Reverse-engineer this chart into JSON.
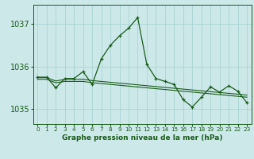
{
  "hours": [
    0,
    1,
    2,
    3,
    4,
    5,
    6,
    7,
    8,
    9,
    10,
    11,
    12,
    13,
    14,
    15,
    16,
    17,
    18,
    19,
    20,
    21,
    22,
    23
  ],
  "pressure_main": [
    1035.75,
    1035.75,
    1035.5,
    1035.72,
    1035.72,
    1035.88,
    1035.58,
    1036.18,
    1036.5,
    1036.72,
    1036.9,
    1037.15,
    1036.05,
    1035.72,
    1035.65,
    1035.58,
    1035.22,
    1035.05,
    1035.28,
    1035.52,
    1035.4,
    1035.55,
    1035.42,
    1035.15
  ],
  "pressure_flat1": [
    1035.7,
    1035.7,
    1035.62,
    1035.65,
    1035.65,
    1035.65,
    1035.62,
    1035.6,
    1035.58,
    1035.56,
    1035.54,
    1035.52,
    1035.5,
    1035.48,
    1035.46,
    1035.44,
    1035.42,
    1035.4,
    1035.38,
    1035.36,
    1035.34,
    1035.32,
    1035.3,
    1035.28
  ],
  "pressure_flat2": [
    1035.74,
    1035.74,
    1035.66,
    1035.7,
    1035.7,
    1035.7,
    1035.67,
    1035.65,
    1035.63,
    1035.61,
    1035.59,
    1035.57,
    1035.55,
    1035.53,
    1035.51,
    1035.49,
    1035.47,
    1035.45,
    1035.43,
    1035.41,
    1035.39,
    1035.37,
    1035.35,
    1035.33
  ],
  "bg_color": "#cce8e8",
  "grid_color": "#aad4d4",
  "line_color": "#1a5c1a",
  "ylim_min": 1034.65,
  "ylim_max": 1037.45,
  "yticks": [
    1035,
    1036,
    1037
  ],
  "xlabel": "Graphe pression niveau de la mer (hPa)"
}
